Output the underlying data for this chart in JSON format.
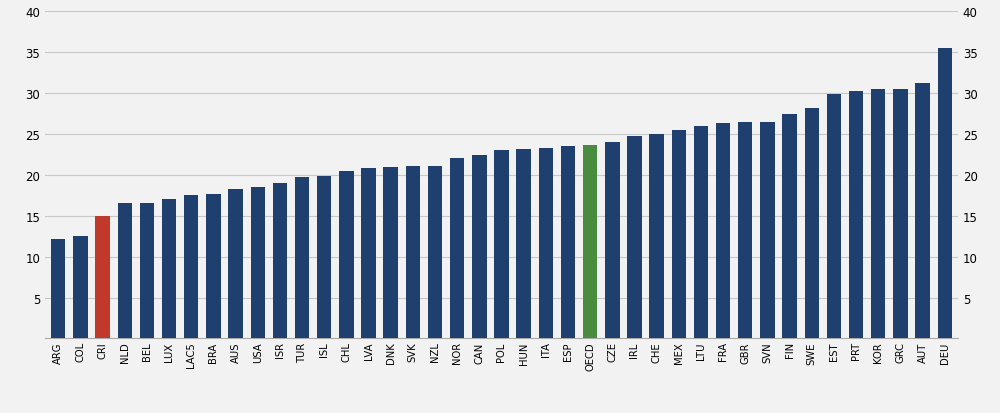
{
  "categories": [
    "ARG",
    "COL",
    "CRI",
    "NLD",
    "BEL",
    "LUX",
    "LAC5",
    "BRA",
    "AUS",
    "USA",
    "ISR",
    "TUR",
    "ISL",
    "CHL",
    "LVA",
    "DNK",
    "SVK",
    "NZL",
    "NOR",
    "CAN",
    "POL",
    "HUN",
    "ITA",
    "ESP",
    "OECD",
    "CZE",
    "IRL",
    "CHE",
    "MEX",
    "LTU",
    "FRA",
    "GBR",
    "SVN",
    "FIN",
    "SWE",
    "EST",
    "PRT",
    "KOR",
    "GRC",
    "AUT",
    "DEU"
  ],
  "values": [
    12.2,
    12.5,
    15.0,
    16.6,
    16.6,
    17.1,
    17.5,
    17.7,
    18.3,
    18.5,
    19.0,
    19.8,
    19.9,
    20.5,
    20.9,
    21.0,
    21.1,
    21.1,
    22.1,
    22.5,
    23.0,
    23.2,
    23.3,
    23.5,
    23.7,
    24.0,
    24.8,
    25.0,
    25.5,
    26.0,
    26.3,
    26.5,
    26.5,
    27.5,
    28.2,
    29.9,
    30.3,
    30.5,
    30.5,
    31.2,
    35.5
  ],
  "bar_colors": [
    "#1f3f6e",
    "#1f3f6e",
    "#c0392b",
    "#1f3f6e",
    "#1f3f6e",
    "#1f3f6e",
    "#1f3f6e",
    "#1f3f6e",
    "#1f3f6e",
    "#1f3f6e",
    "#1f3f6e",
    "#1f3f6e",
    "#1f3f6e",
    "#1f3f6e",
    "#1f3f6e",
    "#1f3f6e",
    "#1f3f6e",
    "#1f3f6e",
    "#1f3f6e",
    "#1f3f6e",
    "#1f3f6e",
    "#1f3f6e",
    "#1f3f6e",
    "#1f3f6e",
    "#4a8c3f",
    "#1f3f6e",
    "#1f3f6e",
    "#1f3f6e",
    "#1f3f6e",
    "#1f3f6e",
    "#1f3f6e",
    "#1f3f6e",
    "#1f3f6e",
    "#1f3f6e",
    "#1f3f6e",
    "#1f3f6e",
    "#1f3f6e",
    "#1f3f6e",
    "#1f3f6e",
    "#1f3f6e",
    "#1f3f6e"
  ],
  "ylim": [
    0,
    40
  ],
  "yticks": [
    0,
    5,
    10,
    15,
    20,
    25,
    30,
    35,
    40
  ],
  "grid_color": "#c8c8c8",
  "background_color": "#f2f2f2",
  "bar_width": 0.65,
  "tick_fontsize": 8.5,
  "xtick_fontsize": 7.2
}
